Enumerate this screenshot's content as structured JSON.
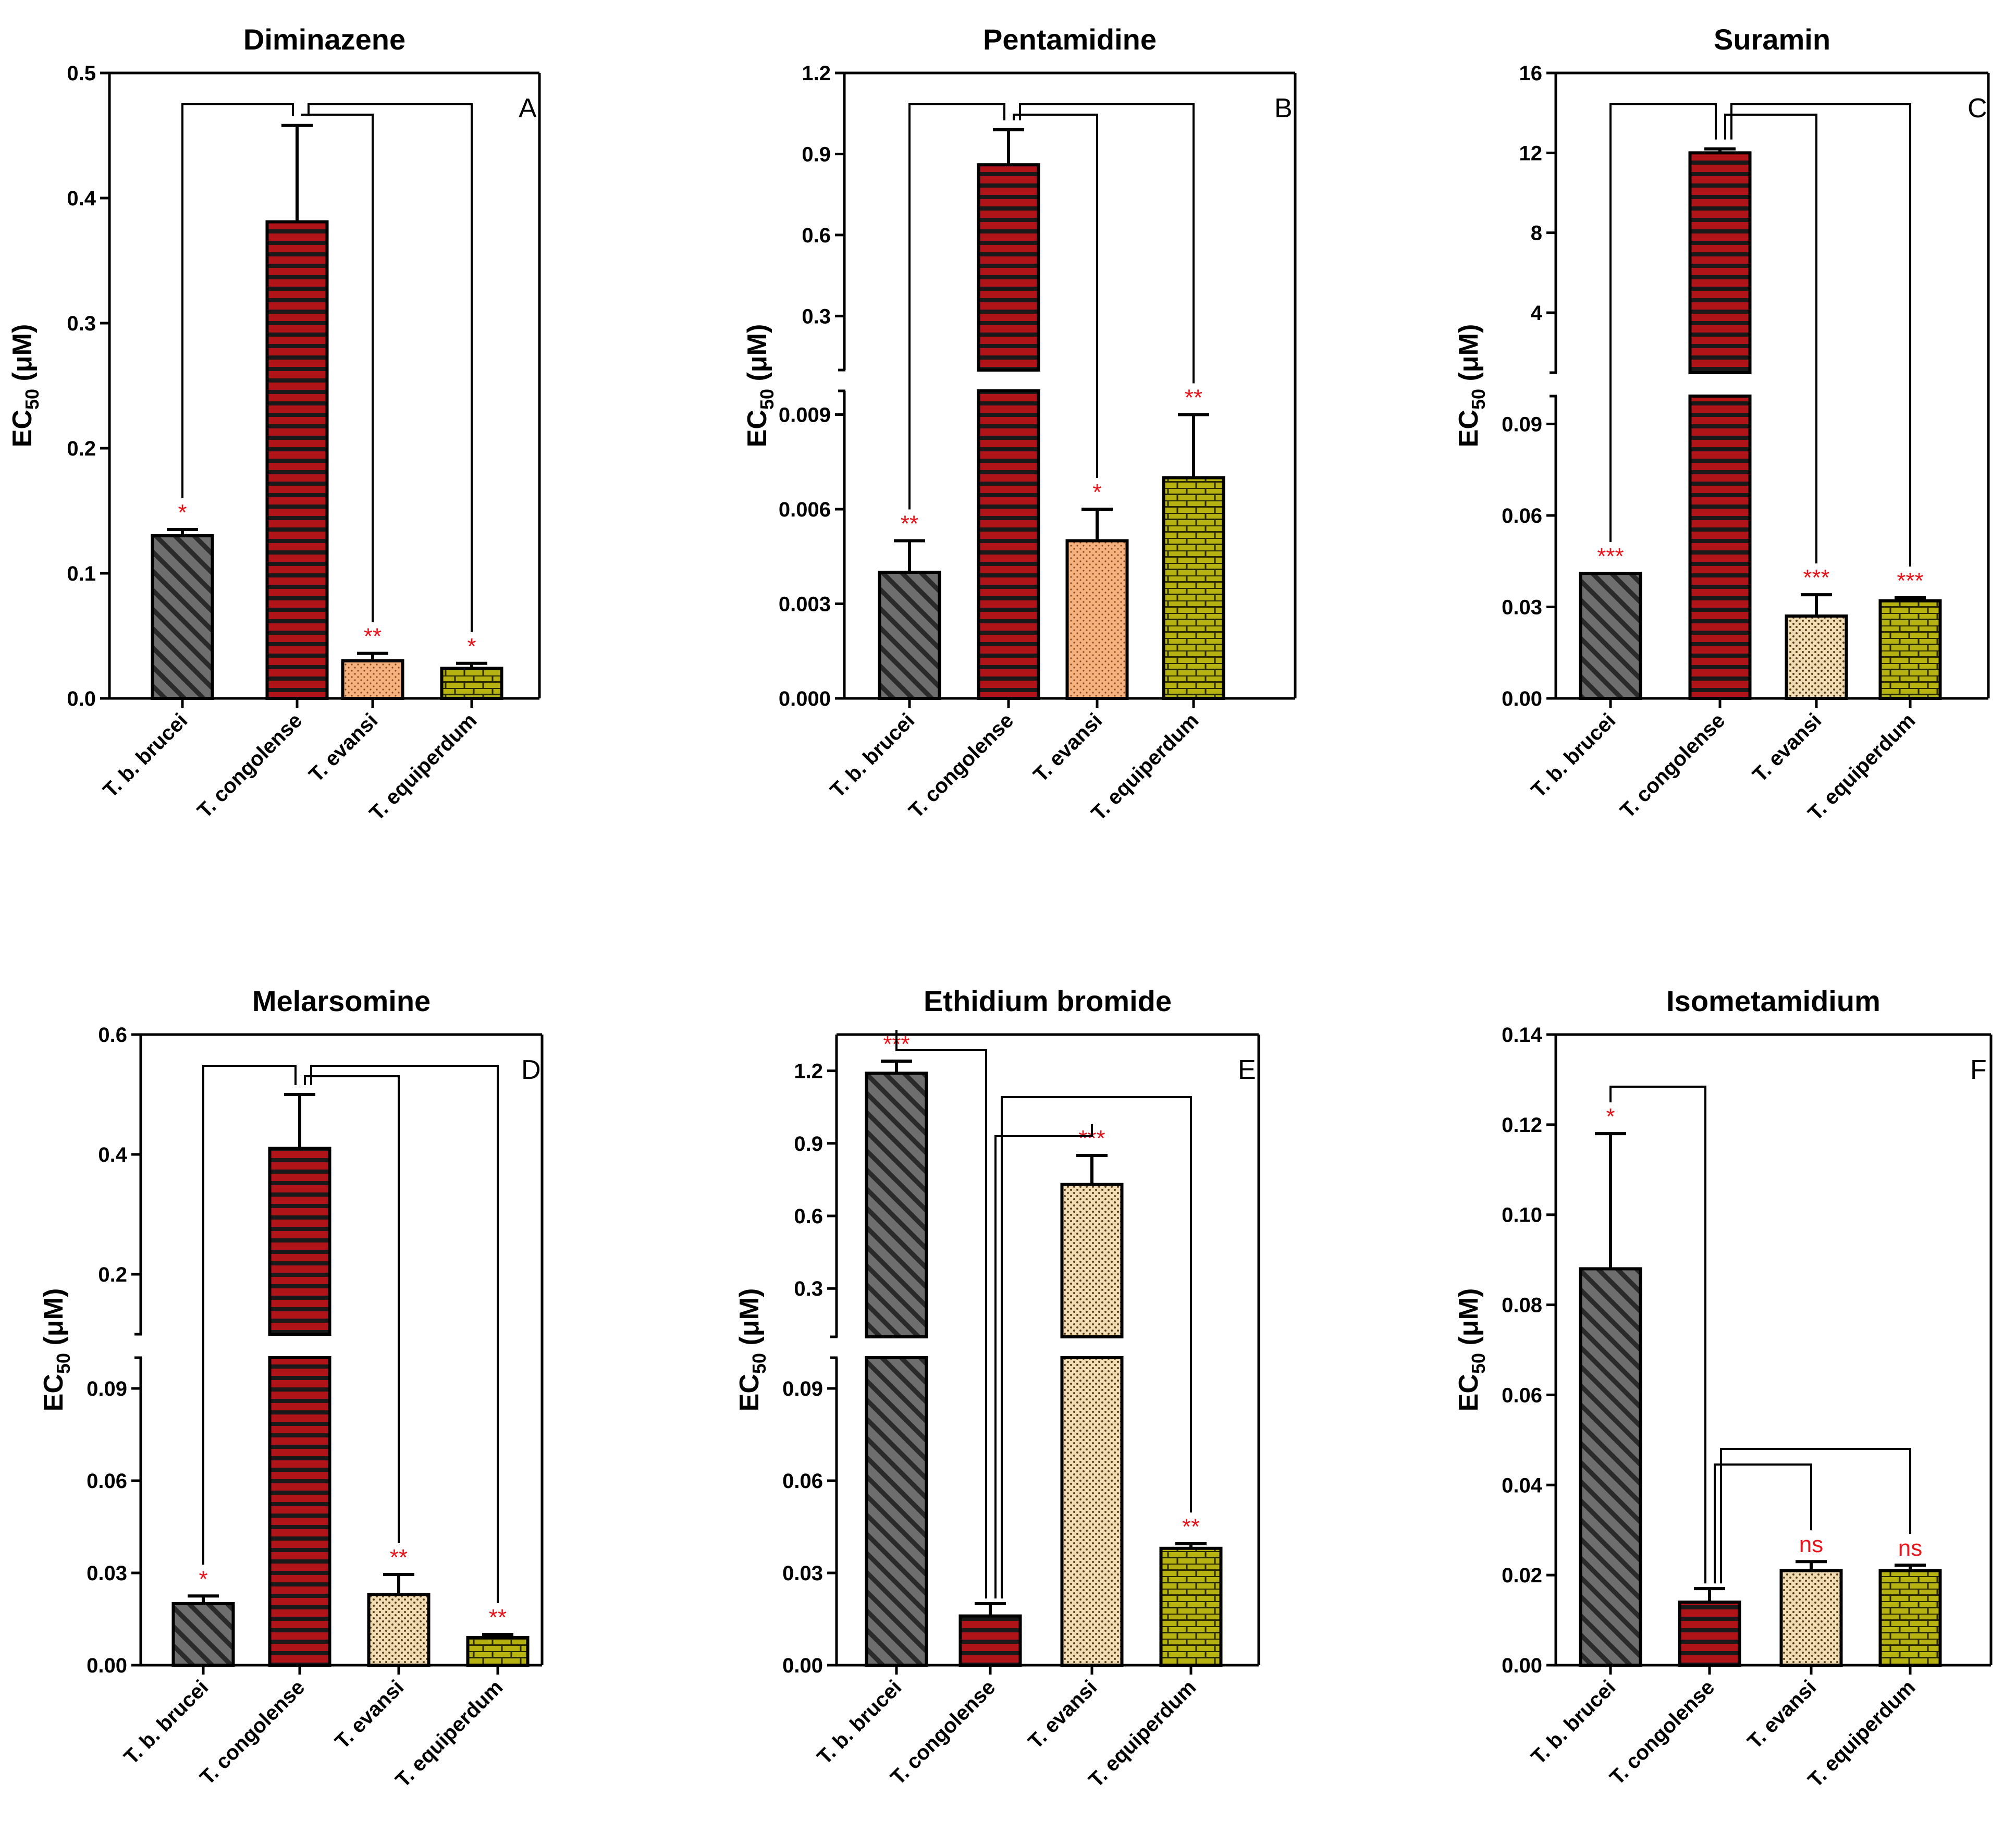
{
  "figure": {
    "categories": [
      "T. b. brucei",
      "T. congolense",
      "T. evansi",
      "T. equiperdum"
    ],
    "ylabel_main": "EC",
    "ylabel_sub": "50",
    "ylabel_unit": " (μM)",
    "colors": {
      "brucei_fill": "#6e6e6e",
      "congolense_fill": "#b01418",
      "evansi_fill_salmon": "#f5b27f",
      "evansi_fill_dotted": "#f1ddb4",
      "equiperdum_fill": "#b6b212",
      "significance": "#e8141c"
    }
  },
  "chart_data": [
    {
      "type": "bar",
      "title": "Diminazene",
      "panel_letter": "A",
      "categories": [
        "T. b. brucei",
        "T. congolense",
        "T. evansi",
        "T. equiperdum"
      ],
      "values": [
        0.13,
        0.381,
        0.03,
        0.024
      ],
      "errors": [
        0.005,
        0.077,
        0.006,
        0.004
      ],
      "significance": [
        "*",
        "",
        "**",
        "*"
      ],
      "ylim": [
        0,
        0.5
      ],
      "yticks": [
        "0.0",
        "0.1",
        "0.2",
        "0.3",
        "0.4",
        "0.5"
      ],
      "axis_break": null,
      "comparisons": "T. congolense vs each"
    },
    {
      "type": "bar",
      "title": "Pentamidine",
      "panel_letter": "B",
      "categories": [
        "T. b. brucei",
        "T. congolense",
        "T. evansi",
        "T. equiperdum"
      ],
      "values": [
        0.004,
        0.86,
        0.005,
        0.007
      ],
      "errors": [
        0.001,
        0.13,
        0.001,
        0.002
      ],
      "significance": [
        "**",
        "",
        "*",
        "**"
      ],
      "ylim": [
        0,
        1.2
      ],
      "axis_break": {
        "lower": [
          0,
          0.01
        ],
        "upper": [
          0.1,
          1.2
        ]
      },
      "yticks_lower": [
        "0.000",
        "0.003",
        "0.006",
        "0.009"
      ],
      "yticks_upper": [
        "0.3",
        "0.6",
        "0.9",
        "1.2"
      ],
      "comparisons": "T. congolense vs each"
    },
    {
      "type": "bar",
      "title": "Suramin",
      "panel_letter": "C",
      "categories": [
        "T. b. brucei",
        "T. congolense",
        "T. evansi",
        "T. equiperdum"
      ],
      "values": [
        0.041,
        12.0,
        0.027,
        0.032
      ],
      "errors": [
        0.0,
        0.2,
        0.007,
        0.001
      ],
      "significance": [
        "***",
        "",
        "***",
        "***"
      ],
      "ylim": [
        0,
        16
      ],
      "axis_break": {
        "lower": [
          0,
          0.1
        ],
        "upper": [
          1,
          16
        ]
      },
      "yticks_lower": [
        "0.00",
        "0.03",
        "0.06",
        "0.09"
      ],
      "yticks_upper": [
        "4",
        "8",
        "12",
        "16"
      ],
      "comparisons": "T. congolense vs each"
    },
    {
      "type": "bar",
      "title": "Melarsomine",
      "panel_letter": "D",
      "categories": [
        "T. b. brucei",
        "T. congolense",
        "T. evansi",
        "T. equiperdum"
      ],
      "values": [
        0.02,
        0.41,
        0.023,
        0.009
      ],
      "errors": [
        0.0025,
        0.09,
        0.0065,
        0.001
      ],
      "significance": [
        "*",
        "",
        "**",
        "**"
      ],
      "ylim": [
        0,
        0.6
      ],
      "axis_break": {
        "lower": [
          0,
          0.1
        ],
        "upper": [
          0.1,
          0.6
        ]
      },
      "yticks_lower": [
        "0.00",
        "0.03",
        "0.06",
        "0.09"
      ],
      "yticks_upper": [
        "0.2",
        "0.4",
        "0.6"
      ],
      "comparisons": "T. congolense vs each"
    },
    {
      "type": "bar",
      "title": "Ethidium bromide",
      "panel_letter": "E",
      "categories": [
        "T. b. brucei",
        "T. congolense",
        "T. evansi",
        "T. equiperdum"
      ],
      "values": [
        1.19,
        0.016,
        0.73,
        0.038
      ],
      "errors": [
        0.05,
        0.004,
        0.12,
        0.0015
      ],
      "significance": [
        "***",
        "",
        "***",
        "**"
      ],
      "ylim": [
        0,
        1.35
      ],
      "axis_break": {
        "lower": [
          0,
          0.1
        ],
        "upper": [
          0.1,
          1.35
        ]
      },
      "yticks_lower": [
        "0.00",
        "0.03",
        "0.06",
        "0.09"
      ],
      "yticks_upper": [
        "0.3",
        "0.6",
        "0.9",
        "1.2"
      ],
      "comparisons": "T. congolense vs each"
    },
    {
      "type": "bar",
      "title": "Isometamidium",
      "panel_letter": "F",
      "categories": [
        "T. b. brucei",
        "T. congolense",
        "T. evansi",
        "T. equiperdum"
      ],
      "values": [
        0.088,
        0.014,
        0.021,
        0.021
      ],
      "errors": [
        0.03,
        0.003,
        0.002,
        0.0012
      ],
      "significance": [
        "*",
        "",
        "ns",
        "ns"
      ],
      "ylim": [
        0,
        0.14
      ],
      "yticks": [
        "0.00",
        "0.02",
        "0.04",
        "0.06",
        "0.08",
        "0.10",
        "0.12",
        "0.14"
      ],
      "axis_break": null,
      "comparisons": "T. congolense vs each"
    }
  ]
}
